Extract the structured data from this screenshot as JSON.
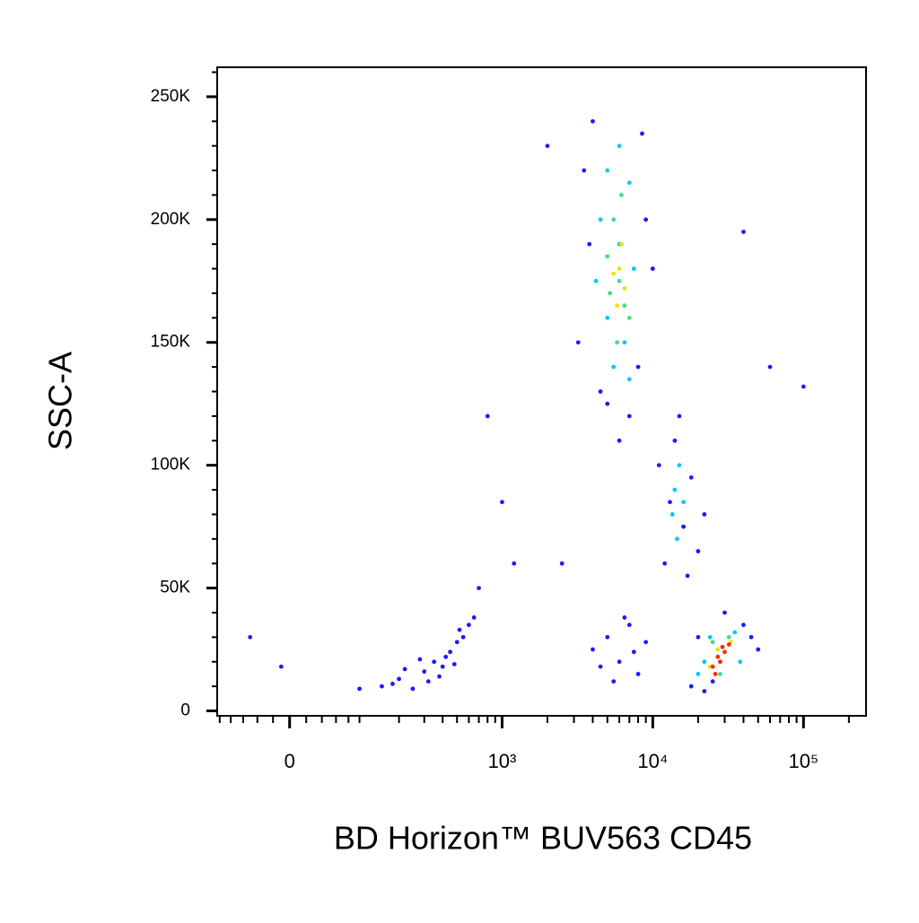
{
  "chart_data": {
    "type": "scatter",
    "x_label": "BD Horizon™ BUV563 CD45",
    "y_label": "SSC-A",
    "xscale": "biexponential",
    "xlim": [
      -105,
      260000
    ],
    "ylim": [
      -2000,
      262000
    ],
    "xticks": [
      0,
      {
        "value": 1000,
        "label": "10³"
      },
      {
        "value": 10000,
        "label": "10⁴"
      },
      {
        "value": 100000,
        "label": "10⁵"
      }
    ],
    "x_minor_ticks": [
      -100,
      -80,
      -60,
      -40,
      -20,
      20,
      40,
      60,
      80,
      100,
      200,
      300,
      400,
      500,
      600,
      700,
      800,
      900,
      2000,
      3000,
      4000,
      5000,
      6000,
      7000,
      8000,
      9000,
      20000,
      30000,
      40000,
      50000,
      60000,
      70000,
      80000,
      90000,
      200000
    ],
    "yticks": [
      {
        "value": 0,
        "label": "0"
      },
      {
        "value": 50000,
        "label": "50K"
      },
      {
        "value": 100000,
        "label": "100K"
      },
      {
        "value": 150000,
        "label": "150K"
      },
      {
        "value": 200000,
        "label": "200K"
      },
      {
        "value": 250000,
        "label": "250K"
      }
    ],
    "y_minor_ticks": [
      10000,
      20000,
      30000,
      40000,
      60000,
      70000,
      80000,
      90000,
      110000,
      120000,
      130000,
      140000,
      160000,
      170000,
      180000,
      190000,
      210000,
      220000,
      230000,
      240000,
      260000
    ],
    "series": [
      {
        "color": "#1a1aff",
        "x": [
          150,
          200,
          250,
          300,
          350,
          400,
          450,
          500,
          550,
          600,
          220,
          320,
          420,
          480,
          380,
          280,
          520,
          180,
          650,
          100,
          4000,
          5000,
          6000,
          7000,
          8000,
          9000,
          5500,
          6500,
          4500,
          7500,
          12000,
          14000,
          16000,
          18000,
          20000,
          13000,
          15000,
          22000,
          11000,
          17000,
          3500,
          4000,
          8500,
          9000,
          3200,
          5000,
          7000,
          10000,
          3800,
          8000,
          6000,
          4500,
          18000,
          22000,
          40000,
          45000,
          30000,
          20000,
          50000,
          25000,
          2000,
          1000,
          800,
          1200,
          40000,
          60000,
          100000,
          -50,
          -10,
          2500,
          700
        ],
        "values": [
          10000,
          13000,
          9000,
          16000,
          20000,
          18000,
          24000,
          28000,
          30000,
          35000,
          17000,
          12000,
          22000,
          19000,
          14000,
          21000,
          33000,
          11000,
          38000,
          9000,
          25000,
          30000,
          20000,
          35000,
          15000,
          28000,
          12000,
          38000,
          18000,
          24000,
          60000,
          110000,
          75000,
          95000,
          65000,
          85000,
          120000,
          80000,
          100000,
          55000,
          220000,
          240000,
          235000,
          200000,
          150000,
          125000,
          120000,
          180000,
          190000,
          140000,
          110000,
          130000,
          10000,
          8000,
          35000,
          30000,
          40000,
          30000,
          25000,
          12000,
          230000,
          85000,
          120000,
          60000,
          195000,
          140000,
          132000,
          30000,
          18000,
          60000,
          50000
        ]
      },
      {
        "color": "#00c8ff",
        "x": [
          4500,
          5000,
          6000,
          7000,
          5000,
          6500,
          7500,
          4200,
          5500,
          7000,
          6000,
          14000,
          15000,
          13500,
          16000,
          14500,
          22000,
          24000,
          35000,
          38000,
          20000
        ],
        "values": [
          200000,
          220000,
          230000,
          215000,
          160000,
          150000,
          180000,
          175000,
          140000,
          135000,
          190000,
          90000,
          100000,
          80000,
          85000,
          70000,
          20000,
          30000,
          32000,
          20000,
          15000
        ]
      },
      {
        "color": "#40e080",
        "x": [
          5500,
          6000,
          6500,
          5000,
          7000,
          5800,
          6200,
          5200,
          25000,
          32000,
          28000
        ],
        "values": [
          200000,
          175000,
          165000,
          185000,
          160000,
          150000,
          210000,
          170000,
          28000,
          30000,
          15000
        ]
      },
      {
        "color": "#e6e600",
        "x": [
          6000,
          5800,
          6500,
          5500,
          6200,
          27000,
          33000,
          24000
        ],
        "values": [
          180000,
          165000,
          172000,
          178000,
          190000,
          25000,
          28000,
          18000
        ]
      },
      {
        "color": "#ff2a00",
        "x": [
          27000,
          30000,
          25000,
          32000,
          28000,
          26000,
          29000
        ],
        "values": [
          22000,
          24000,
          18000,
          27000,
          20000,
          15000,
          26000
        ]
      }
    ]
  }
}
